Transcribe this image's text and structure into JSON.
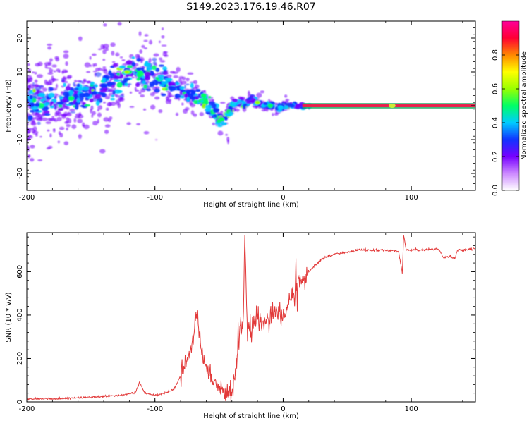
{
  "title": "S149.2023.176.19.46.R07",
  "colors": {
    "snr_line": "#e23a3a",
    "spec_center_line": "#ee1c4c",
    "colormap": [
      "#ffffff",
      "#cc88ff",
      "#7700ff",
      "#1133ff",
      "#00ccff",
      "#00ff66",
      "#99ff00",
      "#ffff00",
      "#ff8800",
      "#ff0033",
      "#ff0099"
    ]
  },
  "chart_data": [
    {
      "type": "heatmap",
      "xlabel": "Height of straight line (km)",
      "ylabel": "Frequency (Hz)",
      "xlim": [
        -200,
        150
      ],
      "ylim": [
        -25,
        25
      ],
      "xticks": [
        -200,
        -100,
        0,
        100
      ],
      "yticks": [
        -20,
        -10,
        0,
        10,
        20
      ],
      "colorbar": {
        "label": "Normalized spectral amplitude",
        "range": [
          0,
          1
        ],
        "ticks": [
          0.0,
          0.2,
          0.4,
          0.6,
          0.8
        ]
      },
      "ridge": {
        "x": [
          -200,
          -180,
          -160,
          -140,
          -130,
          -120,
          -110,
          -100,
          -90,
          -80,
          -70,
          -60,
          -50,
          -45,
          -40,
          -35,
          -30,
          -25,
          -20,
          -15,
          -10,
          -5,
          0,
          10,
          20,
          150
        ],
        "y": [
          0,
          2,
          3,
          6,
          8,
          10,
          9,
          9,
          7,
          5,
          3,
          1,
          -4,
          -4,
          0,
          1,
          0,
          2,
          1,
          0,
          0,
          -0.5,
          0,
          0,
          0,
          0
        ]
      }
    },
    {
      "type": "line",
      "xlabel": "Height of straight line (km)",
      "ylabel": "SNR (10 * v/v)",
      "xlim": [
        -200,
        150
      ],
      "ylim": [
        0,
        780
      ],
      "xticks": [
        -200,
        -100,
        0,
        100
      ],
      "yticks": [
        0,
        200,
        400,
        600
      ],
      "series": [
        {
          "x": [
            -200,
            -180,
            -160,
            -140,
            -125,
            -115,
            -112,
            -108,
            -100,
            -90,
            -85,
            -80,
            -75,
            -70,
            -68,
            -66,
            -64,
            -62,
            -60,
            -55,
            -50,
            -45,
            -40,
            -37,
            -35,
            -33,
            -31,
            -30,
            -28,
            -25,
            -20,
            -15,
            -10,
            -5,
            0,
            5,
            10,
            15,
            20,
            25,
            30,
            40,
            50,
            60,
            70,
            80,
            90,
            93,
            94,
            96,
            100,
            110,
            120,
            122,
            125,
            130,
            134,
            136,
            140,
            150
          ],
          "y": [
            15,
            14,
            18,
            25,
            30,
            45,
            90,
            40,
            30,
            45,
            60,
            120,
            200,
            280,
            430,
            350,
            250,
            180,
            160,
            110,
            70,
            40,
            45,
            150,
            280,
            350,
            400,
            780,
            330,
            350,
            390,
            370,
            390,
            400,
            400,
            460,
            520,
            560,
            600,
            630,
            660,
            680,
            690,
            700,
            700,
            700,
            695,
            590,
            770,
            700,
            700,
            700,
            705,
            700,
            665,
            670,
            660,
            700,
            700,
            705
          ]
        }
      ]
    }
  ]
}
